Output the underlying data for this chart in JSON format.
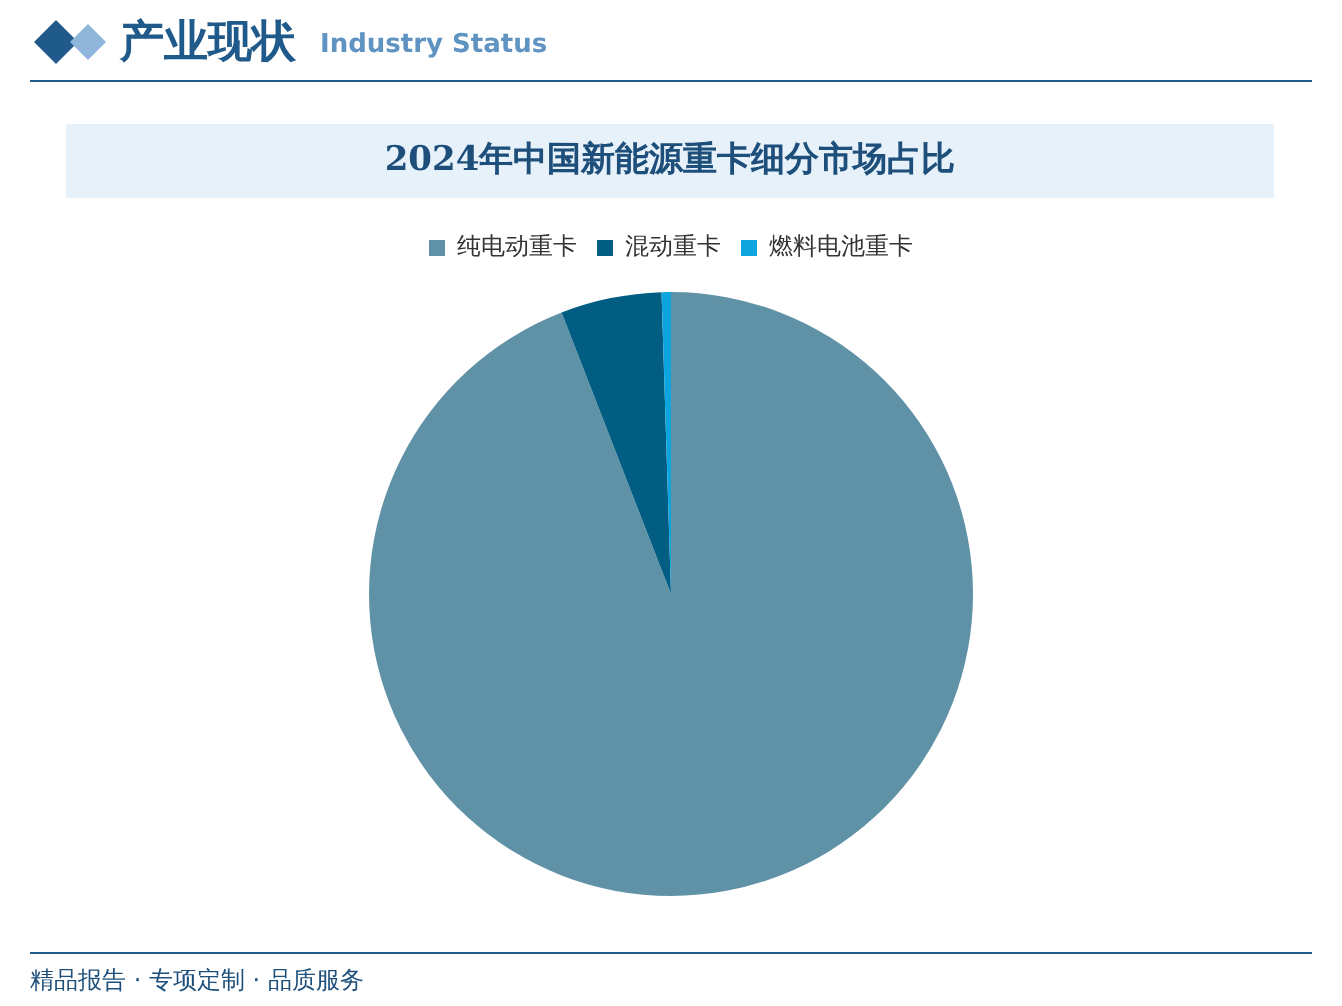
{
  "chart_data": {
    "type": "pie",
    "title": "2024年中国新能源重卡细分市场占比",
    "categories": [
      "纯电动重卡",
      "混动重卡",
      "燃料电池重卡"
    ],
    "values": [
      94.1,
      5.4,
      0.5
    ],
    "colors": [
      "#6092a7",
      "#015d82",
      "#0ea5de"
    ],
    "legend": "top",
    "annotations": [
      "产业现状",
      "Industry Status",
      "精品报告 · 专项定制 · 品质服务"
    ]
  }
}
